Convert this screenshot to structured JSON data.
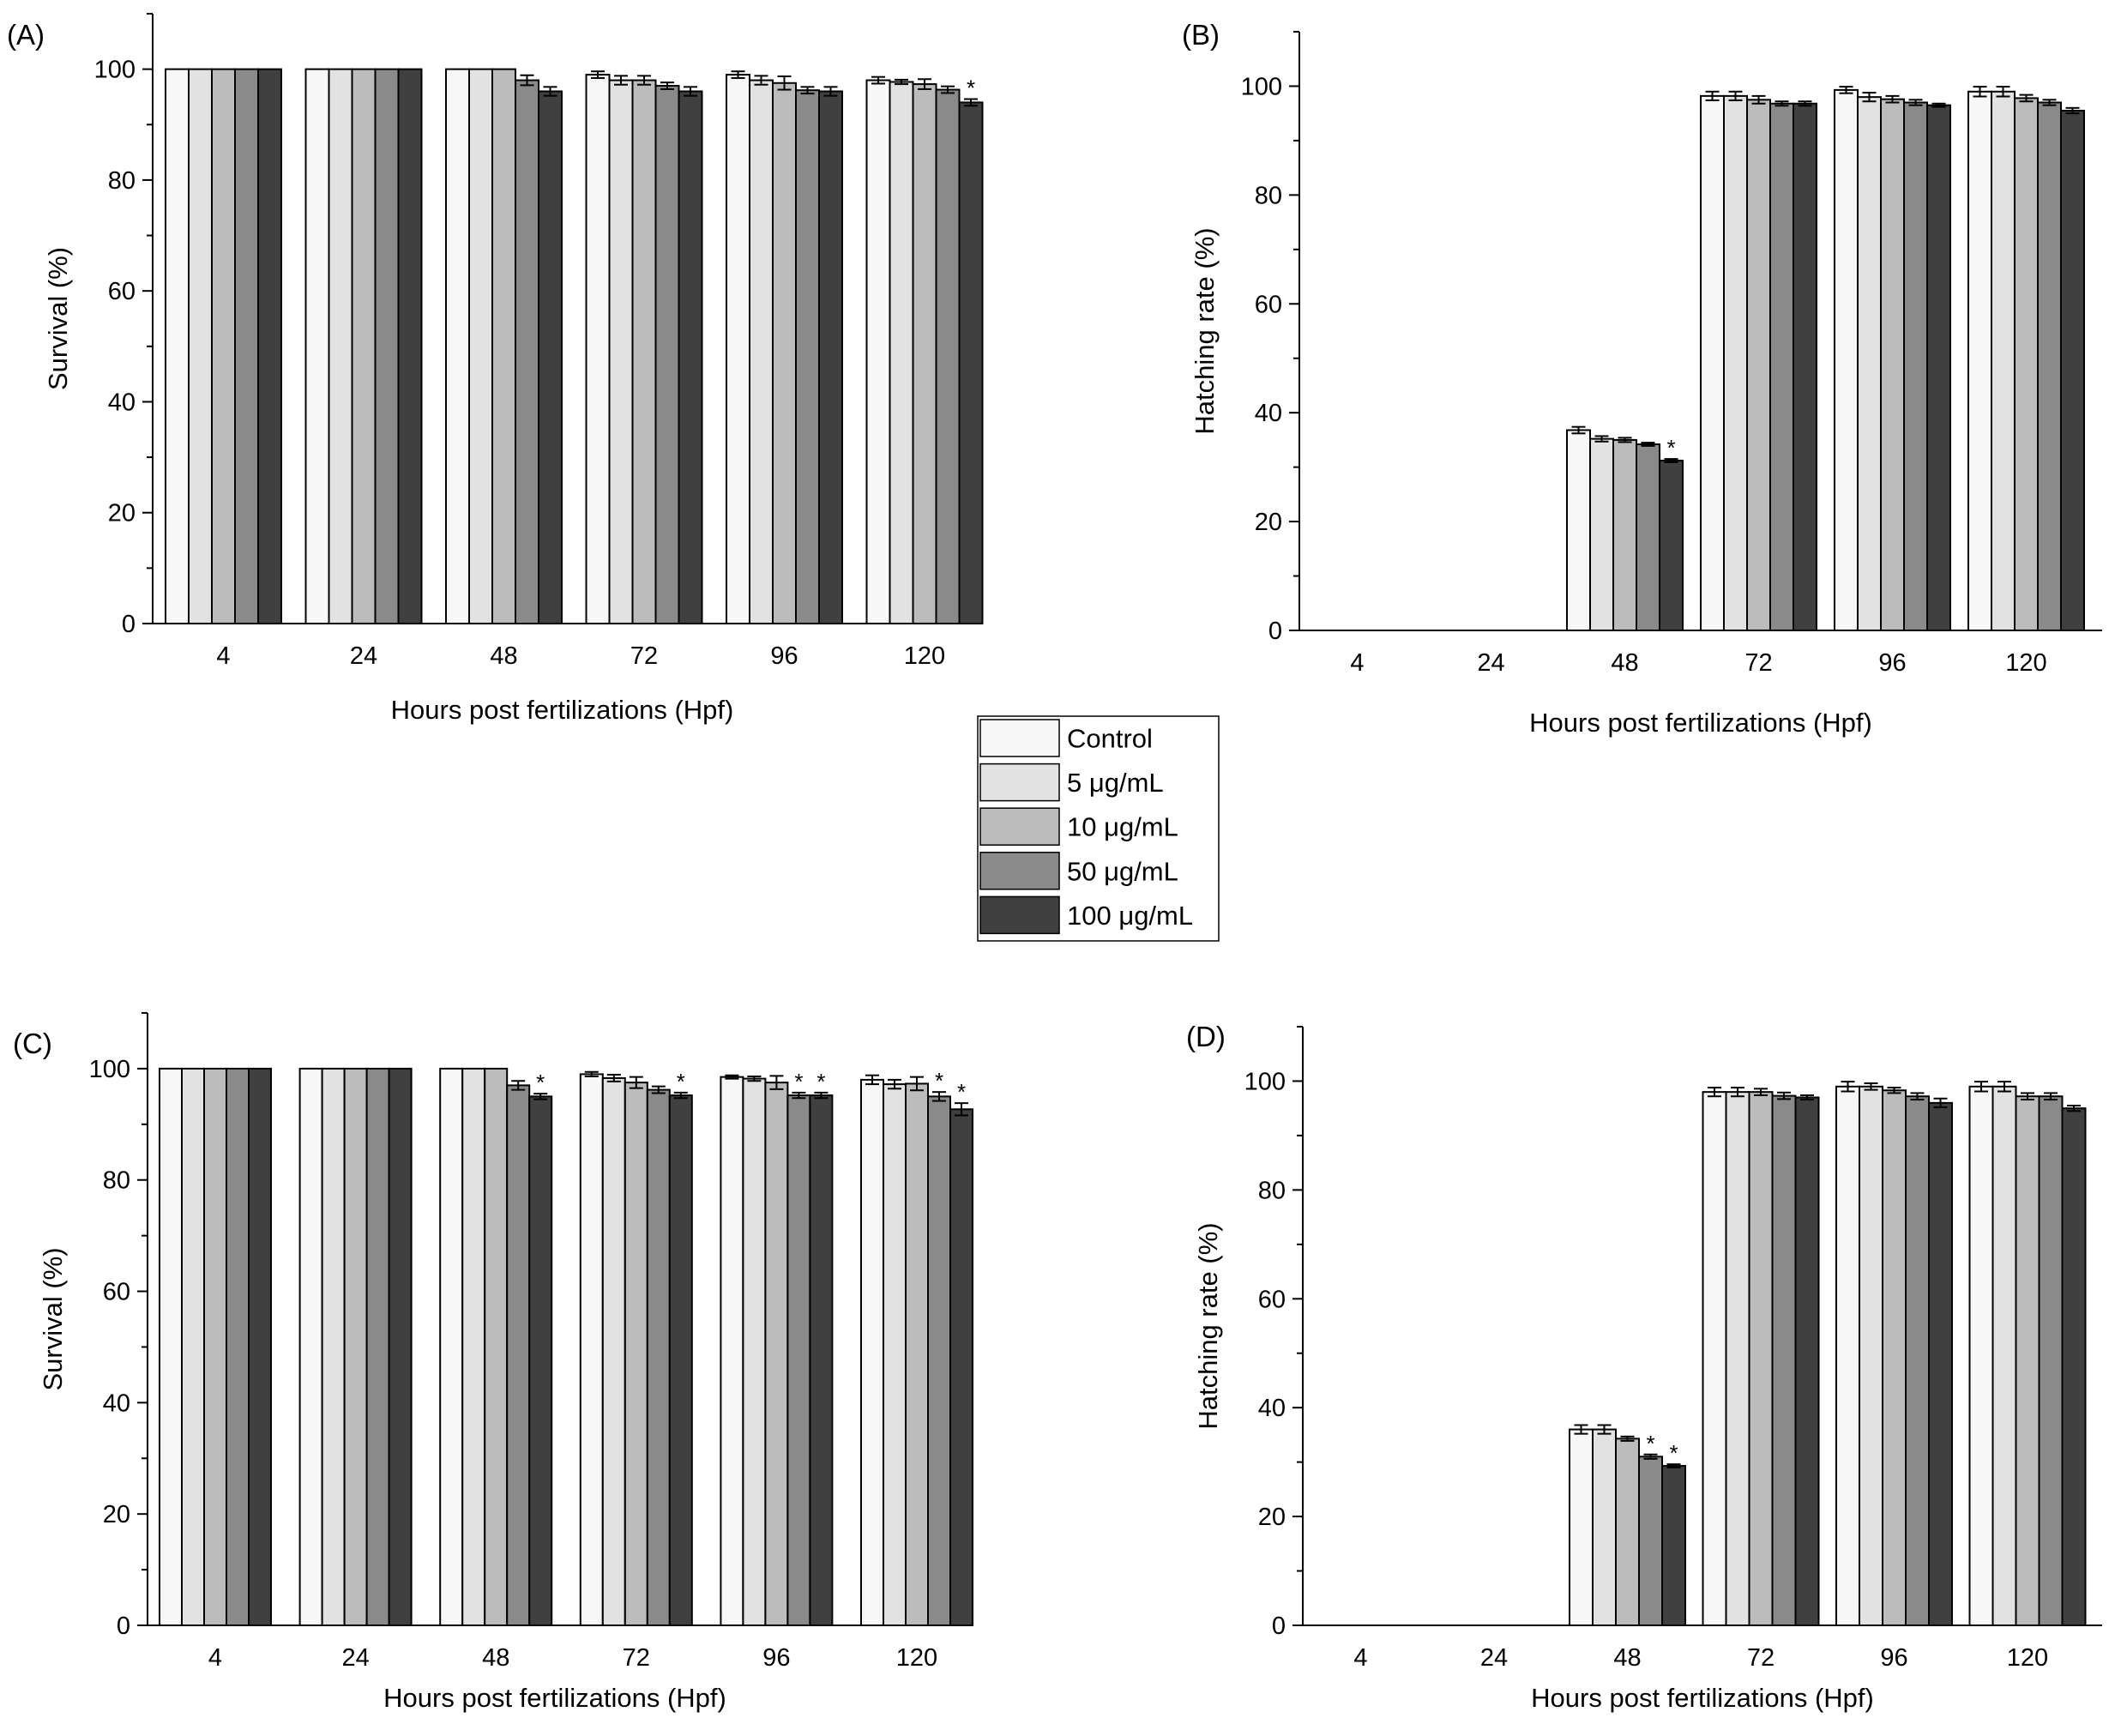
{
  "legend": {
    "entries": [
      {
        "label": "Control",
        "color": "#f7f7f7"
      },
      {
        "label": "5 μg/mL",
        "color": "#e2e2e2"
      },
      {
        "label": "10 μg/mL",
        "color": "#bcbcbc"
      },
      {
        "label": "50 μg/mL",
        "color": "#8a8a8a"
      },
      {
        "label": "100 μg/mL",
        "color": "#404040"
      }
    ]
  },
  "chart_data": [
    {
      "panel": "(A)",
      "type": "bar",
      "title": "",
      "xlabel": "Hours post fertilizations (Hpf)",
      "ylabel": "Survival (%)",
      "ylim": [
        0,
        110
      ],
      "yticks": [
        0,
        20,
        40,
        60,
        80,
        100
      ],
      "categories": [
        "4",
        "24",
        "48",
        "72",
        "96",
        "120"
      ],
      "series": [
        {
          "name": "Control",
          "values": [
            100,
            100,
            100,
            99,
            99,
            98
          ],
          "errors": [
            0,
            0,
            0,
            0.6,
            0.6,
            0.6
          ]
        },
        {
          "name": "5 μg/mL",
          "values": [
            100,
            100,
            100,
            98,
            98,
            97.7
          ],
          "errors": [
            0,
            0,
            0,
            0.8,
            0.8,
            0.4
          ]
        },
        {
          "name": "10 μg/mL",
          "values": [
            100,
            100,
            100,
            98,
            97.5,
            97.3
          ],
          "errors": [
            0,
            0,
            0,
            0.8,
            1.2,
            0.9
          ]
        },
        {
          "name": "50 μg/mL",
          "values": [
            100,
            100,
            98,
            97,
            96.2,
            96.3
          ],
          "errors": [
            0,
            0,
            0.9,
            0.6,
            0.6,
            0.6
          ]
        },
        {
          "name": "100 μg/mL",
          "values": [
            100,
            100,
            96,
            96,
            96,
            94
          ],
          "errors": [
            0,
            0,
            0.8,
            0.8,
            0.8,
            0.6
          ]
        }
      ],
      "significance": [
        {
          "category": "120",
          "series": "100 μg/mL",
          "mark": "*"
        }
      ]
    },
    {
      "panel": "(B)",
      "type": "bar",
      "title": "",
      "xlabel": "Hours post fertilizations (Hpf)",
      "ylabel": "Hatching rate (%)",
      "ylim": [
        0,
        110
      ],
      "yticks": [
        0,
        20,
        40,
        60,
        80,
        100
      ],
      "categories": [
        "4",
        "24",
        "48",
        "72",
        "96",
        "120"
      ],
      "series": [
        {
          "name": "Control",
          "values": [
            0,
            0,
            36.8,
            98.2,
            99.3,
            99
          ],
          "errors": [
            0,
            0,
            0.6,
            0.8,
            0.6,
            0.9
          ]
        },
        {
          "name": "5 μg/mL",
          "values": [
            0,
            0,
            35.2,
            98.2,
            98,
            99
          ],
          "errors": [
            0,
            0,
            0.5,
            0.8,
            0.8,
            0.9
          ]
        },
        {
          "name": "10 μg/mL",
          "values": [
            0,
            0,
            35,
            97.5,
            97.6,
            97.8
          ],
          "errors": [
            0,
            0,
            0.4,
            0.7,
            0.6,
            0.6
          ]
        },
        {
          "name": "50 μg/mL",
          "values": [
            0,
            0,
            34.2,
            96.8,
            97,
            97
          ],
          "errors": [
            0,
            0,
            0.3,
            0.4,
            0.5,
            0.5
          ]
        },
        {
          "name": "100 μg/mL",
          "values": [
            0,
            0,
            31.2,
            96.8,
            96.5,
            95.5
          ],
          "errors": [
            0,
            0,
            0.3,
            0.4,
            0.3,
            0.5
          ]
        }
      ],
      "significance": [
        {
          "category": "48",
          "series": "100 μg/mL",
          "mark": "*"
        }
      ]
    },
    {
      "panel": "(C)",
      "type": "bar",
      "title": "",
      "xlabel": "Hours post fertilizations (Hpf)",
      "ylabel": "Survival (%)",
      "ylim": [
        0,
        110
      ],
      "yticks": [
        0,
        20,
        40,
        60,
        80,
        100
      ],
      "categories": [
        "4",
        "24",
        "48",
        "72",
        "96",
        "120"
      ],
      "series": [
        {
          "name": "Control",
          "values": [
            100,
            100,
            100,
            99,
            98.5,
            98
          ],
          "errors": [
            0,
            0,
            0,
            0.4,
            0.3,
            0.8
          ]
        },
        {
          "name": "5 μg/mL",
          "values": [
            100,
            100,
            100,
            98.3,
            98.2,
            97.2
          ],
          "errors": [
            0,
            0,
            0,
            0.6,
            0.4,
            0.8
          ]
        },
        {
          "name": "10 μg/mL",
          "values": [
            100,
            100,
            100,
            97.5,
            97.5,
            97.3
          ],
          "errors": [
            0,
            0,
            0,
            1,
            1.2,
            1.2
          ]
        },
        {
          "name": "50 μg/mL",
          "values": [
            100,
            100,
            97,
            96.2,
            95.2,
            95
          ],
          "errors": [
            0,
            0,
            0.8,
            0.6,
            0.5,
            0.8
          ]
        },
        {
          "name": "100 μg/mL",
          "values": [
            100,
            100,
            95,
            95.2,
            95.2,
            92.7
          ],
          "errors": [
            0,
            0,
            0.5,
            0.5,
            0.5,
            1.1
          ]
        }
      ],
      "significance": [
        {
          "category": "48",
          "series": "100 μg/mL",
          "mark": "*"
        },
        {
          "category": "72",
          "series": "100 μg/mL",
          "mark": "*"
        },
        {
          "category": "96",
          "series": "50 μg/mL",
          "mark": "*"
        },
        {
          "category": "96",
          "series": "100 μg/mL",
          "mark": "*"
        },
        {
          "category": "120",
          "series": "50 μg/mL",
          "mark": "*"
        },
        {
          "category": "120",
          "series": "100 μg/mL",
          "mark": "*"
        }
      ]
    },
    {
      "panel": "(D)",
      "type": "bar",
      "title": "",
      "xlabel": "Hours post fertilizations (Hpf)",
      "ylabel": "Hatching rate (%)",
      "ylim": [
        0,
        110
      ],
      "yticks": [
        0,
        20,
        40,
        60,
        80,
        100
      ],
      "categories": [
        "4",
        "24",
        "48",
        "72",
        "96",
        "120"
      ],
      "series": [
        {
          "name": "Control",
          "values": [
            0,
            0,
            36,
            98,
            99,
            99
          ],
          "errors": [
            0,
            0,
            0.8,
            0.8,
            0.9,
            0.9
          ]
        },
        {
          "name": "5 μg/mL",
          "values": [
            0,
            0,
            36,
            98,
            99,
            99
          ],
          "errors": [
            0,
            0,
            0.8,
            0.8,
            0.6,
            0.9
          ]
        },
        {
          "name": "10 μg/mL",
          "values": [
            0,
            0,
            34.3,
            98,
            98.3,
            97.2
          ],
          "errors": [
            0,
            0,
            0.4,
            0.6,
            0.5,
            0.6
          ]
        },
        {
          "name": "50 μg/mL",
          "values": [
            0,
            0,
            31,
            97.3,
            97.2,
            97.2
          ],
          "errors": [
            0,
            0,
            0.4,
            0.6,
            0.6,
            0.6
          ]
        },
        {
          "name": "100 μg/mL",
          "values": [
            0,
            0,
            29.3,
            97,
            96,
            95
          ],
          "errors": [
            0,
            0,
            0.3,
            0.4,
            0.8,
            0.5
          ]
        }
      ],
      "significance": [
        {
          "category": "48",
          "series": "50 μg/mL",
          "mark": "*"
        },
        {
          "category": "48",
          "series": "100 μg/mL",
          "mark": "*"
        }
      ]
    }
  ]
}
